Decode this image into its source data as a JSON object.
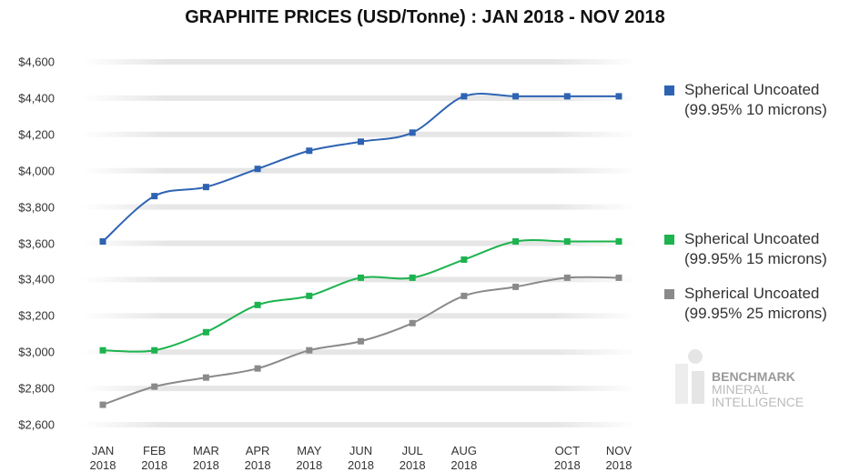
{
  "chart_data": {
    "type": "line",
    "title": "GRAPHITE PRICES (USD/Tonne) : JAN 2018 - NOV 2018",
    "categories": [
      "JAN\n2018",
      "FEB\n2018",
      "MAR\n2018",
      "APR\n2018",
      "MAY\n2018",
      "JUN\n2018",
      "JUL\n2018",
      "AUG\n2018",
      null,
      "OCT\n2018",
      "NOV\n2018"
    ],
    "series": [
      {
        "name": "Spherical Uncoated\n(99.95% 10 microns)",
        "color": "#2e63b3",
        "values": [
          3610,
          3860,
          3910,
          4010,
          4110,
          4160,
          4210,
          4410,
          4410,
          4410,
          4410
        ]
      },
      {
        "name": "Spherical Uncoated\n(99.95% 15 microns)",
        "color": "#1db34f",
        "values": [
          3010,
          3010,
          3110,
          3260,
          3310,
          3410,
          3410,
          3510,
          3610,
          3610,
          3610
        ]
      },
      {
        "name": "Spherical Uncoated\n(99.95% 25 microns)",
        "color": "#8a8a8a",
        "values": [
          2710,
          2810,
          2860,
          2910,
          3010,
          3060,
          3160,
          3310,
          3360,
          3410,
          3410
        ]
      }
    ],
    "ylim": [
      2600,
      4600
    ],
    "yticks": [
      {
        "value": 2600,
        "label": "$2,600"
      },
      {
        "value": 2800,
        "label": "$2,800"
      },
      {
        "value": 3000,
        "label": "$3,000"
      },
      {
        "value": 3200,
        "label": "$3,200"
      },
      {
        "value": 3400,
        "label": "$3,400"
      },
      {
        "value": 3600,
        "label": "$3,600"
      },
      {
        "value": 3800,
        "label": "$3,800"
      },
      {
        "value": 4000,
        "label": "$4,000"
      },
      {
        "value": 4200,
        "label": "$4,200"
      },
      {
        "value": 4400,
        "label": "$4,400"
      },
      {
        "value": 4600,
        "label": "$4,600"
      }
    ],
    "grid": true,
    "legend": "right",
    "logo": {
      "name": "BENCHMARK",
      "line2": "MINERAL",
      "line3": "INTELLIGENCE"
    }
  }
}
